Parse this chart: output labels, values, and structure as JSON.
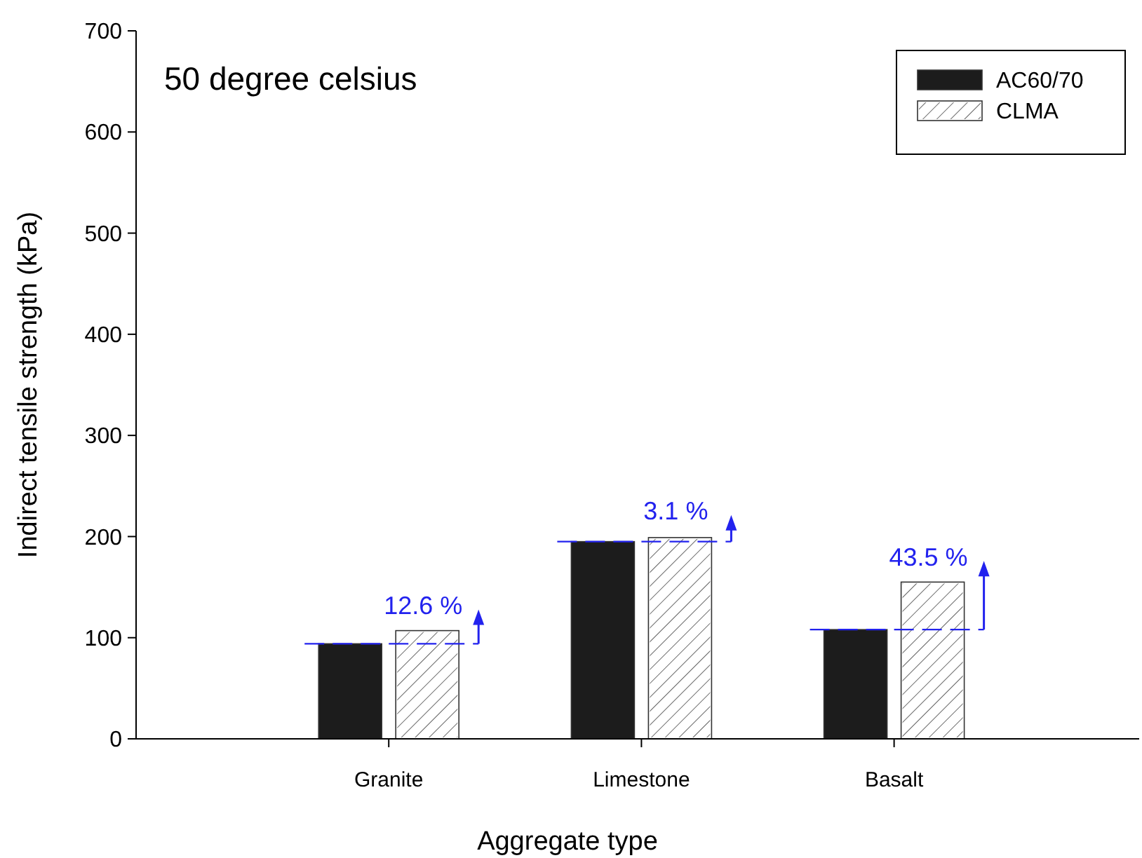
{
  "chart_data": {
    "type": "bar",
    "title": "50 degree celsius",
    "xlabel": "Aggregate type",
    "ylabel": "Indirect tensile strength (kPa)",
    "categories": [
      "Granite",
      "Limestone",
      "Basalt"
    ],
    "series": [
      {
        "name": "AC60/70",
        "color": "#1c1c1c",
        "values": [
          94,
          195,
          108
        ]
      },
      {
        "name": "CLMA",
        "color": "#ffffff",
        "values": [
          107,
          199,
          155
        ]
      }
    ],
    "ylim": [
      0,
      700
    ],
    "yticks": [
      0,
      100,
      200,
      300,
      400,
      500,
      600,
      700
    ],
    "grid": false,
    "legend": "top right",
    "annotations": [
      "12.6 %",
      "3.1 %",
      "43.5 %"
    ]
  }
}
